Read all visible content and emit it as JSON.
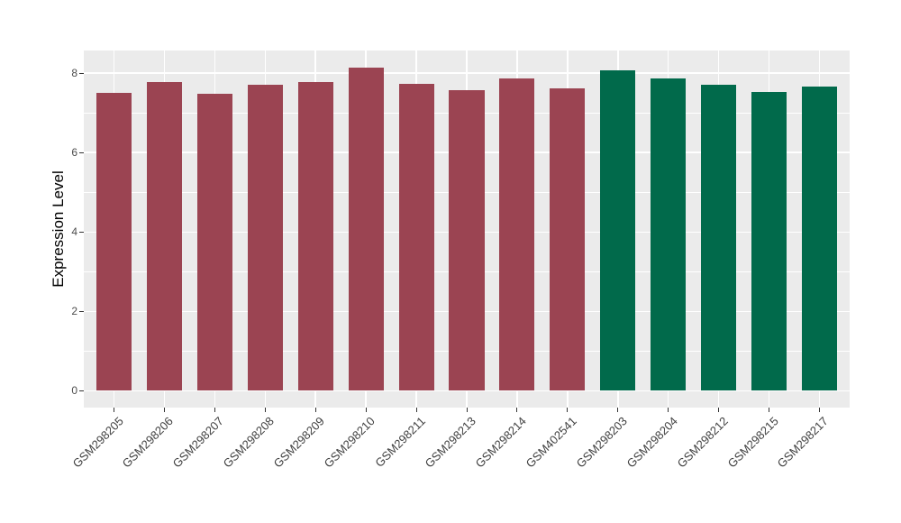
{
  "figure": {
    "background": "#FFFFFF",
    "panel_background": "#EBEBEB",
    "gridline_color": "#FFFFFF",
    "tick_color": "#333333",
    "axis_text_color": "#404040",
    "y_title_color": "#000000"
  },
  "chart_data": {
    "type": "bar",
    "title": "",
    "xlabel": "",
    "ylabel": "Expression Level",
    "legend": "none",
    "grid": true,
    "categories": [
      "GSM298205",
      "GSM298206",
      "GSM298207",
      "GSM298208",
      "GSM298209",
      "GSM298210",
      "GSM298211",
      "GSM298213",
      "GSM298214",
      "GSM402541",
      "GSM298203",
      "GSM298204",
      "GSM298212",
      "GSM298215",
      "GSM298217"
    ],
    "values": [
      7.5,
      7.78,
      7.49,
      7.7,
      7.77,
      8.13,
      7.74,
      7.57,
      7.86,
      7.61,
      8.07,
      7.87,
      7.71,
      7.53,
      7.67
    ],
    "groups": [
      "g1",
      "g1",
      "g1",
      "g1",
      "g1",
      "g1",
      "g1",
      "g1",
      "g1",
      "g1",
      "g2",
      "g2",
      "g2",
      "g2",
      "g2"
    ],
    "group_colors": {
      "g1": "#9B4452",
      "g2": "#016A4B"
    },
    "yticks": [
      0,
      2,
      4,
      6,
      8
    ],
    "yticks_minor": [
      1,
      3,
      5,
      7
    ],
    "ylim": [
      -0.42,
      8.57
    ],
    "bar_width_fraction": 0.7
  }
}
